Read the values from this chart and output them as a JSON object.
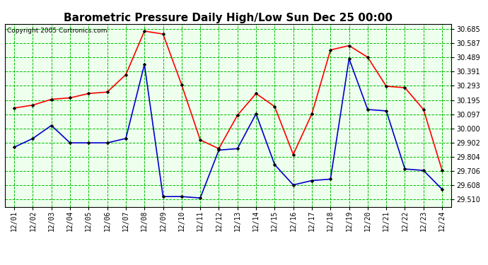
{
  "title": "Barometric Pressure Daily High/Low Sun Dec 25 00:00",
  "copyright": "Copyright 2005 Curtronics.com",
  "x_labels": [
    "12/01",
    "12/02",
    "12/03",
    "12/04",
    "12/05",
    "12/06",
    "12/07",
    "12/08",
    "12/09",
    "12/10",
    "12/11",
    "12/12",
    "12/13",
    "12/14",
    "12/15",
    "12/16",
    "12/17",
    "12/18",
    "12/19",
    "12/20",
    "12/21",
    "12/22",
    "12/23",
    "12/24"
  ],
  "high_values": [
    30.14,
    30.16,
    30.2,
    30.21,
    30.24,
    30.25,
    30.37,
    30.67,
    30.65,
    30.3,
    29.92,
    29.86,
    30.09,
    30.24,
    30.15,
    29.82,
    30.1,
    30.54,
    30.57,
    30.49,
    30.29,
    30.28,
    30.13,
    29.71
  ],
  "low_values": [
    29.87,
    29.93,
    30.02,
    29.9,
    29.9,
    29.9,
    29.93,
    30.44,
    29.53,
    29.53,
    29.52,
    29.85,
    29.86,
    30.1,
    29.75,
    29.61,
    29.64,
    29.65,
    30.48,
    30.13,
    30.12,
    29.72,
    29.71,
    29.58
  ],
  "high_color": "#ff0000",
  "low_color": "#0000cc",
  "bg_color": "#ffffff",
  "plot_bg_color": "#eeffee",
  "grid_color": "#00bb00",
  "title_color": "#000000",
  "yticks": [
    29.51,
    29.608,
    29.706,
    29.804,
    29.902,
    30.0,
    30.097,
    30.195,
    30.293,
    30.391,
    30.489,
    30.587,
    30.685
  ],
  "ylim": [
    29.46,
    30.72
  ],
  "marker": "D",
  "marker_size": 2.5,
  "linewidth": 1.2,
  "title_fontsize": 11,
  "copyright_fontsize": 6.5,
  "ytick_fontsize": 7,
  "xtick_fontsize": 7
}
